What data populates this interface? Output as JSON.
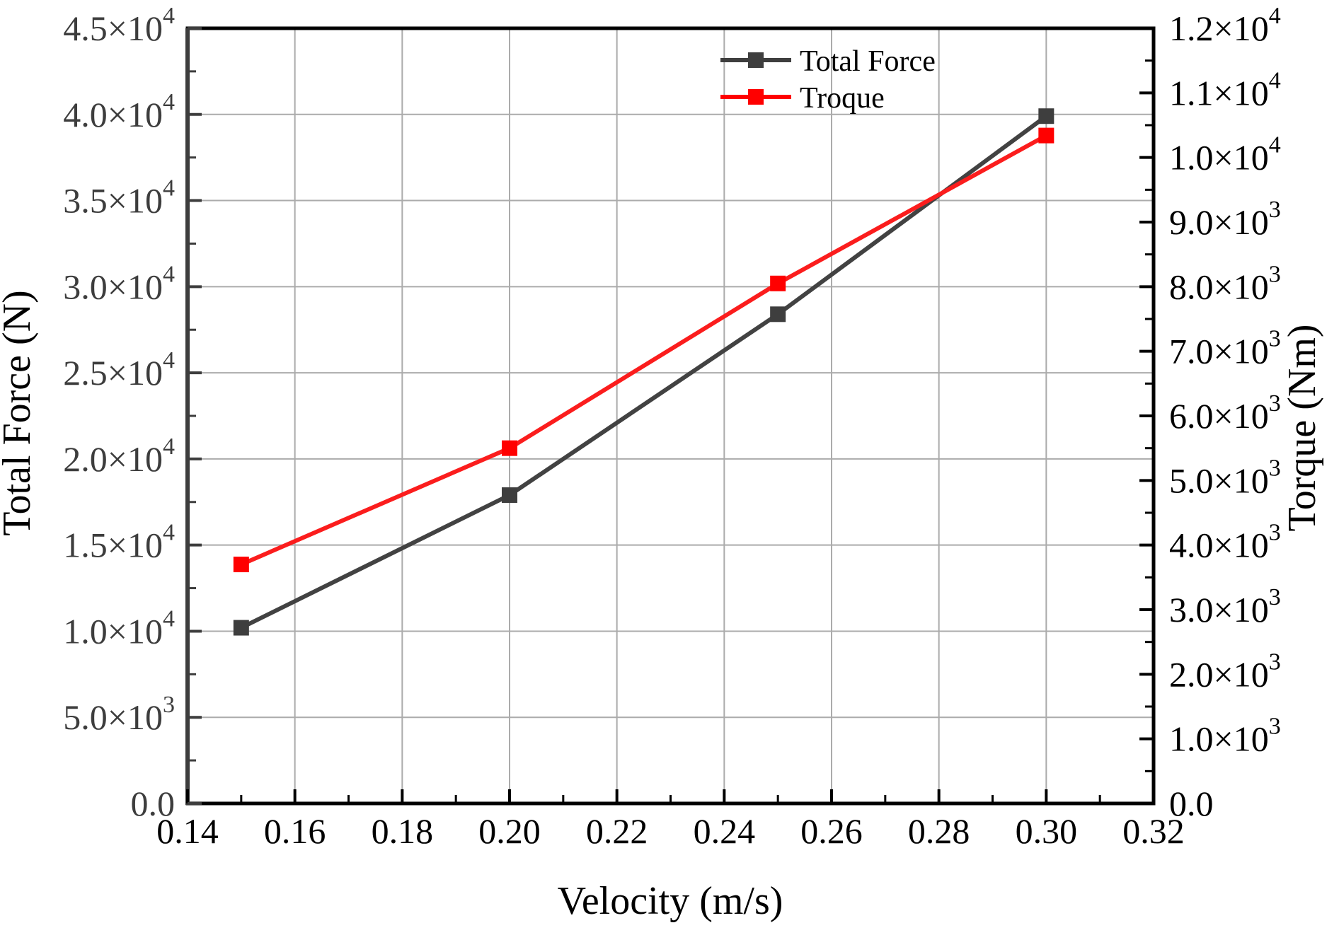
{
  "figure": {
    "background": "#ffffff"
  },
  "chart_data": {
    "type": "line",
    "title": "",
    "xlabel": "Velocity (m/s)",
    "ylabel_left": "Total Force (N)",
    "ylabel_right": "Torque (Nm)",
    "x": [
      0.15,
      0.2,
      0.25,
      0.3
    ],
    "series": [
      {
        "name": "Total Force",
        "axis": "left",
        "color": "#3e3e3e",
        "line_color": "#424242",
        "marker": "square",
        "values": [
          10200,
          17900,
          28400,
          39900
        ]
      },
      {
        "name": "Troque",
        "axis": "right",
        "color": "#ff0000",
        "line_color": "#fb1d1d",
        "marker": "square",
        "values": [
          3700,
          5500,
          8050,
          10340
        ]
      }
    ],
    "xlim": [
      0.14,
      0.32
    ],
    "ylim_left": [
      0,
      45000
    ],
    "ylim_right": [
      0,
      12000
    ],
    "x_major_step": 0.02,
    "x_minor_step": 0.01,
    "left_major_step": 5000,
    "left_minor_step": 2500,
    "right_major_step": 1000,
    "right_minor_step": 500,
    "grid": true,
    "legend_position": "inside-top-right",
    "x_tick_labels": [
      "0.14",
      "0.16",
      "0.18",
      "0.20",
      "0.22",
      "0.24",
      "0.26",
      "0.28",
      "0.30",
      "0.32"
    ],
    "left_tick_labels": [
      [
        "0.0",
        ""
      ],
      [
        "5.0×10",
        "3"
      ],
      [
        "1.0×10",
        "4"
      ],
      [
        "1.5×10",
        "4"
      ],
      [
        "2.0×10",
        "4"
      ],
      [
        "2.5×10",
        "4"
      ],
      [
        "3.0×10",
        "4"
      ],
      [
        "3.5×10",
        "4"
      ],
      [
        "4.0×10",
        "4"
      ],
      [
        "4.5×10",
        "4"
      ]
    ],
    "right_tick_labels": [
      [
        "0.0",
        ""
      ],
      [
        "1.0×10",
        "3"
      ],
      [
        "2.0×10",
        "3"
      ],
      [
        "3.0×10",
        "3"
      ],
      [
        "4.0×10",
        "3"
      ],
      [
        "5.0×10",
        "3"
      ],
      [
        "6.0×10",
        "3"
      ],
      [
        "7.0×10",
        "3"
      ],
      [
        "8.0×10",
        "3"
      ],
      [
        "9.0×10",
        "3"
      ],
      [
        "1.0×10",
        "4"
      ],
      [
        "1.1×10",
        "4"
      ],
      [
        "1.2×10",
        "4"
      ]
    ]
  },
  "legend": {
    "items": [
      {
        "label": "Total Force",
        "color": "#3e3e3e"
      },
      {
        "label": "Troque",
        "color": "#ff0000"
      }
    ]
  },
  "colors": {
    "frame": "#000000",
    "left_axis": "#3d3d3d",
    "grid": "#ababab",
    "tick_label_left": "#3d3d3d",
    "tick_label_right": "#000000",
    "tick_label_x": "#000000",
    "axis_title": "#000000",
    "legend_text": "#000000"
  }
}
